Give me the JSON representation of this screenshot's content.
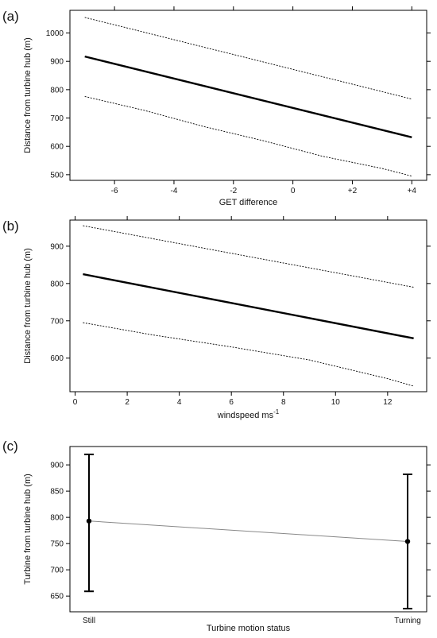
{
  "chart_data": [
    {
      "id": "a",
      "panel_label": "(a)",
      "type": "line",
      "xlabel": "GET difference",
      "ylabel": "Distance from turbine hub (m)",
      "xlim": [
        -7.5,
        4.5
      ],
      "ylim": [
        480,
        1080
      ],
      "xticks": [
        {
          "value": -6,
          "label": "-6"
        },
        {
          "value": -4,
          "label": "-4"
        },
        {
          "value": -2,
          "label": "-2"
        },
        {
          "value": 0,
          "label": "0"
        },
        {
          "value": 2,
          "label": "+2"
        },
        {
          "value": 4,
          "label": "+4"
        }
      ],
      "yticks": [
        {
          "value": 500,
          "label": "500"
        },
        {
          "value": 600,
          "label": "600"
        },
        {
          "value": 700,
          "label": "700"
        },
        {
          "value": 800,
          "label": "800"
        },
        {
          "value": 900,
          "label": "900"
        },
        {
          "value": 1000,
          "label": "1000"
        }
      ],
      "series": [
        {
          "role": "fit",
          "style": "solid",
          "x": [
            -7,
            4
          ],
          "y": [
            917,
            632
          ]
        },
        {
          "role": "upper",
          "style": "dotted",
          "x": [
            -7,
            4
          ],
          "y": [
            1055,
            767
          ]
        },
        {
          "role": "lower",
          "style": "dotted",
          "x": [
            -7,
            -5,
            -3,
            -1,
            1,
            3,
            4
          ],
          "y": [
            776,
            727,
            670,
            620,
            565,
            522,
            495
          ]
        }
      ]
    },
    {
      "id": "b",
      "panel_label": "(b)",
      "type": "line",
      "xlabel": "windspeed ms",
      "xlabel_superscript": "-1",
      "ylabel": "Distance from turbine hub (m)",
      "xlim": [
        -0.2,
        13.5
      ],
      "ylim": [
        510,
        970
      ],
      "xticks": [
        {
          "value": 0,
          "label": "0"
        },
        {
          "value": 2,
          "label": "2"
        },
        {
          "value": 4,
          "label": "4"
        },
        {
          "value": 6,
          "label": "6"
        },
        {
          "value": 8,
          "label": "8"
        },
        {
          "value": 10,
          "label": "10"
        },
        {
          "value": 12,
          "label": "12"
        }
      ],
      "yticks": [
        {
          "value": 600,
          "label": "600"
        },
        {
          "value": 700,
          "label": "700"
        },
        {
          "value": 800,
          "label": "800"
        },
        {
          "value": 900,
          "label": "900"
        }
      ],
      "series": [
        {
          "role": "fit",
          "style": "solid",
          "x": [
            0.3,
            13
          ],
          "y": [
            825,
            653
          ]
        },
        {
          "role": "upper",
          "style": "dotted",
          "x": [
            0.3,
            13
          ],
          "y": [
            955,
            790
          ]
        },
        {
          "role": "lower",
          "style": "dotted",
          "x": [
            0.3,
            3,
            6,
            9,
            12,
            13
          ],
          "y": [
            695,
            662,
            630,
            595,
            545,
            525
          ]
        }
      ]
    },
    {
      "id": "c",
      "panel_label": "(c)",
      "type": "scatter",
      "xlabel": "Turbine motion status",
      "ylabel": "Turbine from turbine hub (m)",
      "categories": [
        "Still",
        "Turning"
      ],
      "ylim": [
        620,
        935
      ],
      "yticks": [
        {
          "value": 650,
          "label": "650"
        },
        {
          "value": 700,
          "label": "700"
        },
        {
          "value": 750,
          "label": "750"
        },
        {
          "value": 800,
          "label": "800"
        },
        {
          "value": 850,
          "label": "850"
        },
        {
          "value": 900,
          "label": "900"
        }
      ],
      "points": [
        {
          "category": "Still",
          "value": 793,
          "err_low": 659,
          "err_high": 920
        },
        {
          "category": "Turning",
          "value": 754,
          "err_low": 626,
          "err_high": 882
        }
      ],
      "connecting_line_color": "#888888"
    }
  ]
}
